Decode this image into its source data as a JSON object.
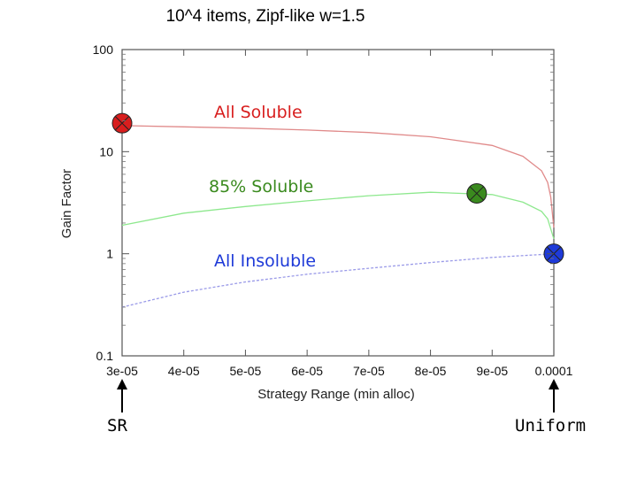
{
  "chart_data": {
    "type": "line",
    "title": "10^4 items, Zipf-like w=1.5",
    "xlabel": "Strategy Range (min alloc)",
    "ylabel": "Gain Factor",
    "yscale": "log",
    "xlim": [
      3e-05,
      0.0001
    ],
    "ylim": [
      0.1,
      100
    ],
    "x_ticks": [
      "3e-05",
      "4e-05",
      "5e-05",
      "6e-05",
      "7e-05",
      "8e-05",
      "9e-05",
      "0.0001"
    ],
    "x_tick_values": [
      3e-05,
      4e-05,
      5e-05,
      6e-05,
      7e-05,
      8e-05,
      9e-05,
      0.0001
    ],
    "y_ticks": [
      "0.1",
      "1",
      "10",
      "100"
    ],
    "y_tick_values": [
      0.1,
      1,
      10,
      100
    ],
    "series": [
      {
        "name": "All Soluble",
        "color": "#d81e1e",
        "line_color": "#e08a8a",
        "x": [
          3e-05,
          4e-05,
          5e-05,
          6e-05,
          7e-05,
          8e-05,
          9e-05,
          9.5e-05,
          9.8e-05,
          9.9e-05,
          9.95e-05,
          0.0001
        ],
        "y": [
          18,
          17.5,
          17,
          16.3,
          15.4,
          14,
          11.5,
          9,
          6.5,
          5,
          3.6,
          1.8
        ],
        "marker_x": 3e-05,
        "marker_y": 19
      },
      {
        "name": "85% Soluble",
        "color": "#3a8a1e",
        "line_color": "#8ee88e",
        "x": [
          3e-05,
          4e-05,
          5e-05,
          6e-05,
          7e-05,
          8e-05,
          9e-05,
          9.5e-05,
          9.8e-05,
          9.9e-05,
          0.0001
        ],
        "y": [
          1.9,
          2.5,
          2.9,
          3.3,
          3.7,
          4.0,
          3.8,
          3.2,
          2.6,
          2.2,
          1.4
        ],
        "marker_x": 8.75e-05,
        "marker_y": 3.9
      },
      {
        "name": "All Insoluble",
        "color": "#1e3ad8",
        "line_color": "#9a9ae8",
        "x": [
          3e-05,
          4e-05,
          5e-05,
          6e-05,
          7e-05,
          8e-05,
          9e-05,
          0.0001
        ],
        "y": [
          0.3,
          0.42,
          0.53,
          0.63,
          0.72,
          0.82,
          0.92,
          1.0
        ],
        "marker_x": 0.0001,
        "marker_y": 1.0
      }
    ],
    "annotations": [
      {
        "text": "SR",
        "x": 3e-05
      },
      {
        "text": "Uniform",
        "x": 0.0001
      }
    ]
  }
}
